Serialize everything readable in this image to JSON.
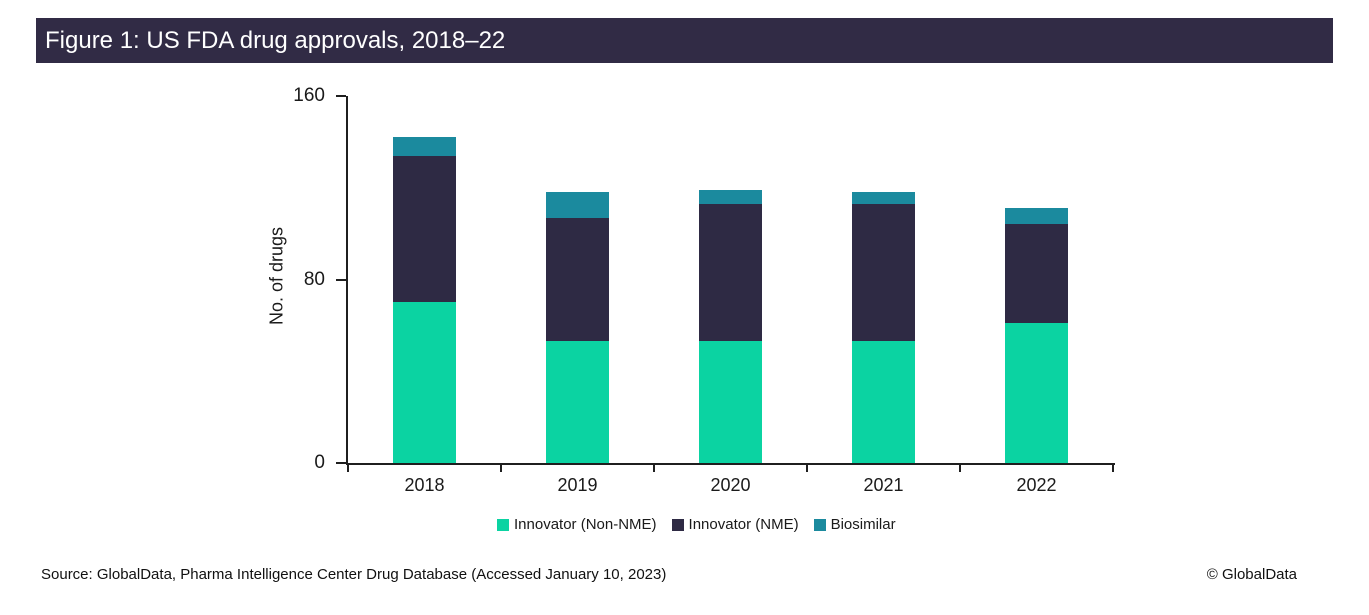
{
  "header": {
    "title": "Figure 1: US FDA drug approvals, 2018–22"
  },
  "chart_data": {
    "type": "bar",
    "stacked": true,
    "title": "Figure 1: US FDA drug approvals, 2018–22",
    "categories": [
      "2018",
      "2019",
      "2020",
      "2021",
      "2022"
    ],
    "series": [
      {
        "name": "Innovator (Non-NME)",
        "color": "#0bd3a2",
        "values": [
          70,
          53,
          53,
          53,
          61
        ]
      },
      {
        "name": "Innovator (NME)",
        "color": "#2e2a44",
        "values": [
          64,
          54,
          60,
          60,
          43
        ]
      },
      {
        "name": "Biosimilar",
        "color": "#1b8a9e",
        "values": [
          8,
          11,
          6,
          5,
          7
        ]
      }
    ],
    "xlabel": "",
    "ylabel": "No. of drugs",
    "ylim": [
      0,
      160
    ],
    "yticks": [
      0,
      80,
      160
    ],
    "grid": false,
    "legend_position": "bottom"
  },
  "footer": {
    "source": "Source: GlobalData, Pharma Intelligence Center Drug Database (Accessed January 10, 2023)",
    "copyright": "© GlobalData"
  },
  "colors": {
    "header_bg": "#312b45",
    "header_text": "#ffffff",
    "axis": "#1f1f1f"
  }
}
